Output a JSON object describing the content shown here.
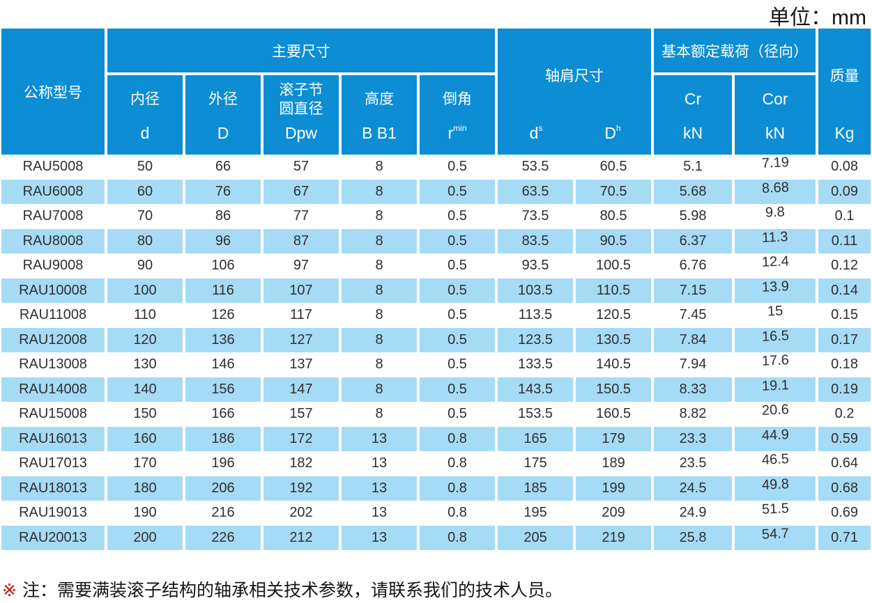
{
  "unit_label": "单位：mm",
  "note": {
    "marker": "※",
    "text": "注：需要满装滚子结构的轴承相关技术参数，请联系我们的技术人员。"
  },
  "colors": {
    "header_blue": "#0d8dd3",
    "row_blue": "#a6dbf5",
    "note_red": "#cc1111"
  },
  "table": {
    "model_header": "公称型号",
    "group_main": "主要尺寸",
    "group_shoulder": "轴肩尺寸",
    "group_load": "基本额定载荷（径向）",
    "group_mass": "质量",
    "sub_columns": [
      {
        "label": "内径",
        "sym": "d",
        "sub": ""
      },
      {
        "label": "外径",
        "sym": "D",
        "sub": ""
      },
      {
        "label": "滚子节\n圆直径",
        "sym": "Dpw",
        "sub": ""
      },
      {
        "label": "高度",
        "sym": "B B1",
        "sub": ""
      },
      {
        "label": "倒角",
        "sym": "r",
        "sub": "min"
      }
    ],
    "shoulder_columns": [
      {
        "sym": "d",
        "sub": "s"
      },
      {
        "sym": "D",
        "sub": "h"
      }
    ],
    "load_columns": [
      {
        "sym": "Cr",
        "unit": "kN"
      },
      {
        "sym": "Cor",
        "unit": "kN"
      }
    ],
    "mass_unit": "Kg"
  },
  "rows": [
    {
      "model": "RAU5008",
      "d": "50",
      "D": "66",
      "dpw": "57",
      "b": "8",
      "r": "0.5",
      "ds": "53.5",
      "dh": "60.5",
      "cr": "5.1",
      "cor": "7.19",
      "mass": "0.08"
    },
    {
      "model": "RAU6008",
      "d": "60",
      "D": "76",
      "dpw": "67",
      "b": "8",
      "r": "0.5",
      "ds": "63.5",
      "dh": "70.5",
      "cr": "5.68",
      "cor": "8.68",
      "mass": "0.09"
    },
    {
      "model": "RAU7008",
      "d": "70",
      "D": "86",
      "dpw": "77",
      "b": "8",
      "r": "0.5",
      "ds": "73.5",
      "dh": "80.5",
      "cr": "5.98",
      "cor": "9.8",
      "mass": "0.1"
    },
    {
      "model": "RAU8008",
      "d": "80",
      "D": "96",
      "dpw": "87",
      "b": "8",
      "r": "0.5",
      "ds": "83.5",
      "dh": "90.5",
      "cr": "6.37",
      "cor": "11.3",
      "mass": "0.11"
    },
    {
      "model": "RAU9008",
      "d": "90",
      "D": "106",
      "dpw": "97",
      "b": "8",
      "r": "0.5",
      "ds": "93.5",
      "dh": "100.5",
      "cr": "6.76",
      "cor": "12.4",
      "mass": "0.12"
    },
    {
      "model": "RAU10008",
      "d": "100",
      "D": "116",
      "dpw": "107",
      "b": "8",
      "r": "0.5",
      "ds": "103.5",
      "dh": "110.5",
      "cr": "7.15",
      "cor": "13.9",
      "mass": "0.14"
    },
    {
      "model": "RAU11008",
      "d": "110",
      "D": "126",
      "dpw": "117",
      "b": "8",
      "r": "0.5",
      "ds": "113.5",
      "dh": "120.5",
      "cr": "7.45",
      "cor": "15",
      "mass": "0.15"
    },
    {
      "model": "RAU12008",
      "d": "120",
      "D": "136",
      "dpw": "127",
      "b": "8",
      "r": "0.5",
      "ds": "123.5",
      "dh": "130.5",
      "cr": "7.84",
      "cor": "16.5",
      "mass": "0.17"
    },
    {
      "model": "RAU13008",
      "d": "130",
      "D": "146",
      "dpw": "137",
      "b": "8",
      "r": "0.5",
      "ds": "133.5",
      "dh": "140.5",
      "cr": "7.94",
      "cor": "17.6",
      "mass": "0.18"
    },
    {
      "model": "RAU14008",
      "d": "140",
      "D": "156",
      "dpw": "147",
      "b": "8",
      "r": "0.5",
      "ds": "143.5",
      "dh": "150.5",
      "cr": "8.33",
      "cor": "19.1",
      "mass": "0.19"
    },
    {
      "model": "RAU15008",
      "d": "150",
      "D": "166",
      "dpw": "157",
      "b": "8",
      "r": "0.5",
      "ds": "153.5",
      "dh": "160.5",
      "cr": "8.82",
      "cor": "20.6",
      "mass": "0.2"
    },
    {
      "model": "RAU16013",
      "d": "160",
      "D": "186",
      "dpw": "172",
      "b": "13",
      "r": "0.8",
      "ds": "165",
      "dh": "179",
      "cr": "23.3",
      "cor": "44.9",
      "mass": "0.59"
    },
    {
      "model": "RAU17013",
      "d": "170",
      "D": "196",
      "dpw": "182",
      "b": "13",
      "r": "0.8",
      "ds": "175",
      "dh": "189",
      "cr": "23.5",
      "cor": "46.5",
      "mass": "0.64"
    },
    {
      "model": "RAU18013",
      "d": "180",
      "D": "206",
      "dpw": "192",
      "b": "13",
      "r": "0.8",
      "ds": "185",
      "dh": "199",
      "cr": "24.5",
      "cor": "49.8",
      "mass": "0.68"
    },
    {
      "model": "RAU19013",
      "d": "190",
      "D": "216",
      "dpw": "202",
      "b": "13",
      "r": "0.8",
      "ds": "195",
      "dh": "209",
      "cr": "24.9",
      "cor": "51.5",
      "mass": "0.69"
    },
    {
      "model": "RAU20013",
      "d": "200",
      "D": "226",
      "dpw": "212",
      "b": "13",
      "r": "0.8",
      "ds": "205",
      "dh": "219",
      "cr": "25.8",
      "cor": "54.7",
      "mass": "0.71"
    }
  ]
}
